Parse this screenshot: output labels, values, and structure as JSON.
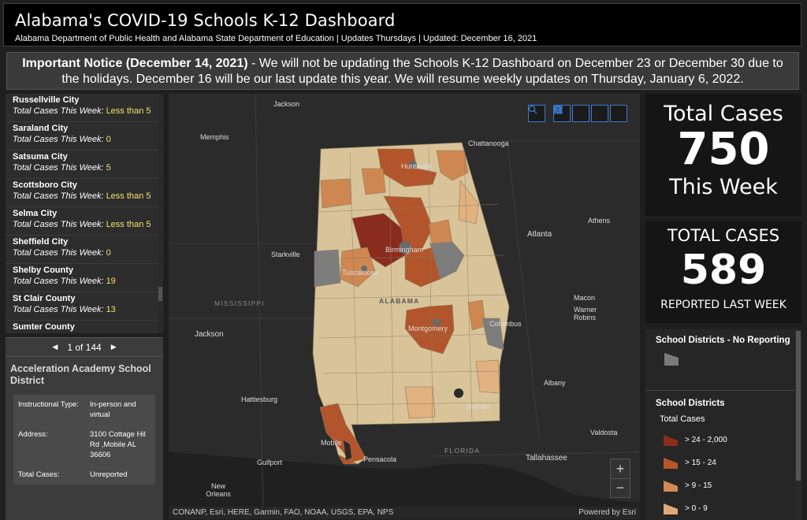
{
  "header": {
    "title": "Alabama's COVID-19 Schools K-12 Dashboard",
    "subtitle": "Alabama Department of Public Health and Alabama State Department of Education | Updates Thursdays | Updated: December 16, 2021"
  },
  "notice": {
    "bold": "Important Notice (December 14, 2021)",
    "text": " - We will not be updating the Schools K-12 Dashboard on December 23 or December 30 due to the holidays. December 16 will be our last update this year. We will resume weekly updates on Thursday, January 6, 2022."
  },
  "list": {
    "label": "Total Cases This Week:",
    "items": [
      {
        "name": "Russellville City",
        "value": "Less than 5"
      },
      {
        "name": "Saraland City",
        "value": "0"
      },
      {
        "name": "Satsuma City",
        "value": "5"
      },
      {
        "name": "Scottsboro City",
        "value": "Less than 5"
      },
      {
        "name": "Selma City",
        "value": "Less than 5"
      },
      {
        "name": "Sheffield City",
        "value": "0"
      },
      {
        "name": "Shelby County",
        "value": "19"
      },
      {
        "name": "St Clair County",
        "value": "13"
      },
      {
        "name": "Sumter County",
        "value": ""
      }
    ]
  },
  "detail": {
    "pager": "1 of 144",
    "title": "Acceleration Academy School District",
    "rows": [
      {
        "key": "Instructional Type:",
        "value": "In-person and virtual"
      },
      {
        "key": "Address:",
        "value": "3100 Cottage Hil Rd ,Mobile AL 36606"
      },
      {
        "key": "Total Cases:",
        "value": "Unreported"
      }
    ]
  },
  "map": {
    "labels": {
      "jackson_top": "Jackson",
      "memphis": "Memphis",
      "chattanooga": "Chattanooga",
      "huntsville": "Huntsville",
      "athens": "Athens",
      "atlanta": "Atlanta",
      "starkville": "Starkville",
      "birmingham": "Birmingham",
      "tuscaloosa": "Tuscaloosa",
      "mississippi": "MISSISSIPPI",
      "alabama": "ALABAMA",
      "macon": "Macon",
      "warner_robins": "Warner Robins",
      "jackson_ms": "Jackson",
      "montgomery": "Montgomery",
      "columbus": "Columbus",
      "hattiesburg": "Hattiesburg",
      "albany": "Albany",
      "dothan": "Dothan",
      "mobile": "Mobile",
      "valdosta": "Valdosta",
      "gulfport": "Gulfport",
      "pensacola": "Pensacola",
      "florida": "FLORIDA",
      "tallahassee": "Tallahassee",
      "new_orleans": "New Orleans"
    },
    "zoom_in": "+",
    "zoom_out": "−",
    "attribution": "CONANP, Esri, HERE, Garmin, FAO, NOAA, USGS, EPA, NPS",
    "powered": "Powered by Esri",
    "tool_icons": [
      "search-icon",
      "home-icon",
      "list-icon",
      "layers-icon",
      "grid-icon"
    ]
  },
  "stats": {
    "this_week_label_top": "Total Cases",
    "this_week_value": "750",
    "this_week_label_bottom": "This Week",
    "last_week_label_top": "TOTAL CASES",
    "last_week_value": "589",
    "last_week_label_bottom": "REPORTED LAST WEEK"
  },
  "legend": {
    "no_report_title": "School Districts - No Reporting",
    "districts_title": "School Districts",
    "field": "Total Cases",
    "classes": [
      {
        "label": "> 24 - 2,000",
        "color": "#8c2d1c"
      },
      {
        "label": "> 15 - 24",
        "color": "#b8552b"
      },
      {
        "label": "> 9 - 15",
        "color": "#d38a52"
      },
      {
        "label": "> 0 - 9",
        "color": "#dfa978"
      }
    ],
    "no_report_color": "#7a7a7a"
  },
  "colors": {
    "base": "#d9c49a",
    "light": "#e1b27f",
    "mid": "#cf8752",
    "dark": "#b3552c",
    "darkest": "#8a2c1d",
    "grey": "#7d7d7d",
    "accent": "#3b7ad1"
  }
}
